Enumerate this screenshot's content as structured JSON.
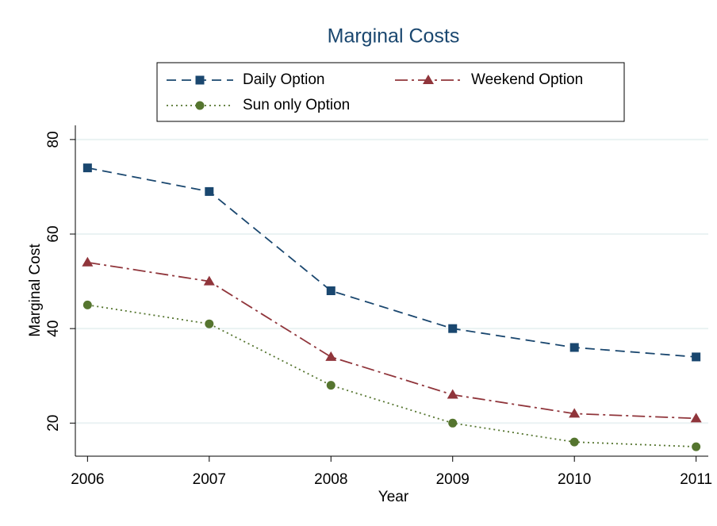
{
  "chart_data": {
    "type": "line",
    "title": "Marginal Costs",
    "x_label": "Year",
    "y_label": "Marginal Cost",
    "x": [
      2006,
      2007,
      2008,
      2009,
      2010,
      2011
    ],
    "series": [
      {
        "name": "Daily Option",
        "color": "#1a476f",
        "marker": "square",
        "dash": "dashed",
        "values": [
          74,
          69,
          48,
          40,
          36,
          34
        ]
      },
      {
        "name": "Weekend Option",
        "color": "#90353b",
        "marker": "triangle",
        "dash": "longdash-dot",
        "values": [
          54,
          50,
          34,
          26,
          22,
          21
        ]
      },
      {
        "name": "Sun only Option",
        "color": "#55752f",
        "marker": "circle",
        "dash": "dotted",
        "values": [
          45,
          41,
          28,
          20,
          16,
          15
        ]
      }
    ],
    "xlim": [
      2005.9,
      2011.1
    ],
    "xticks": [
      2006,
      2007,
      2008,
      2009,
      2010,
      2011
    ],
    "ylim": [
      13,
      83
    ],
    "yticks": [
      20,
      40,
      60,
      80
    ],
    "grid": true,
    "legend": "top"
  }
}
